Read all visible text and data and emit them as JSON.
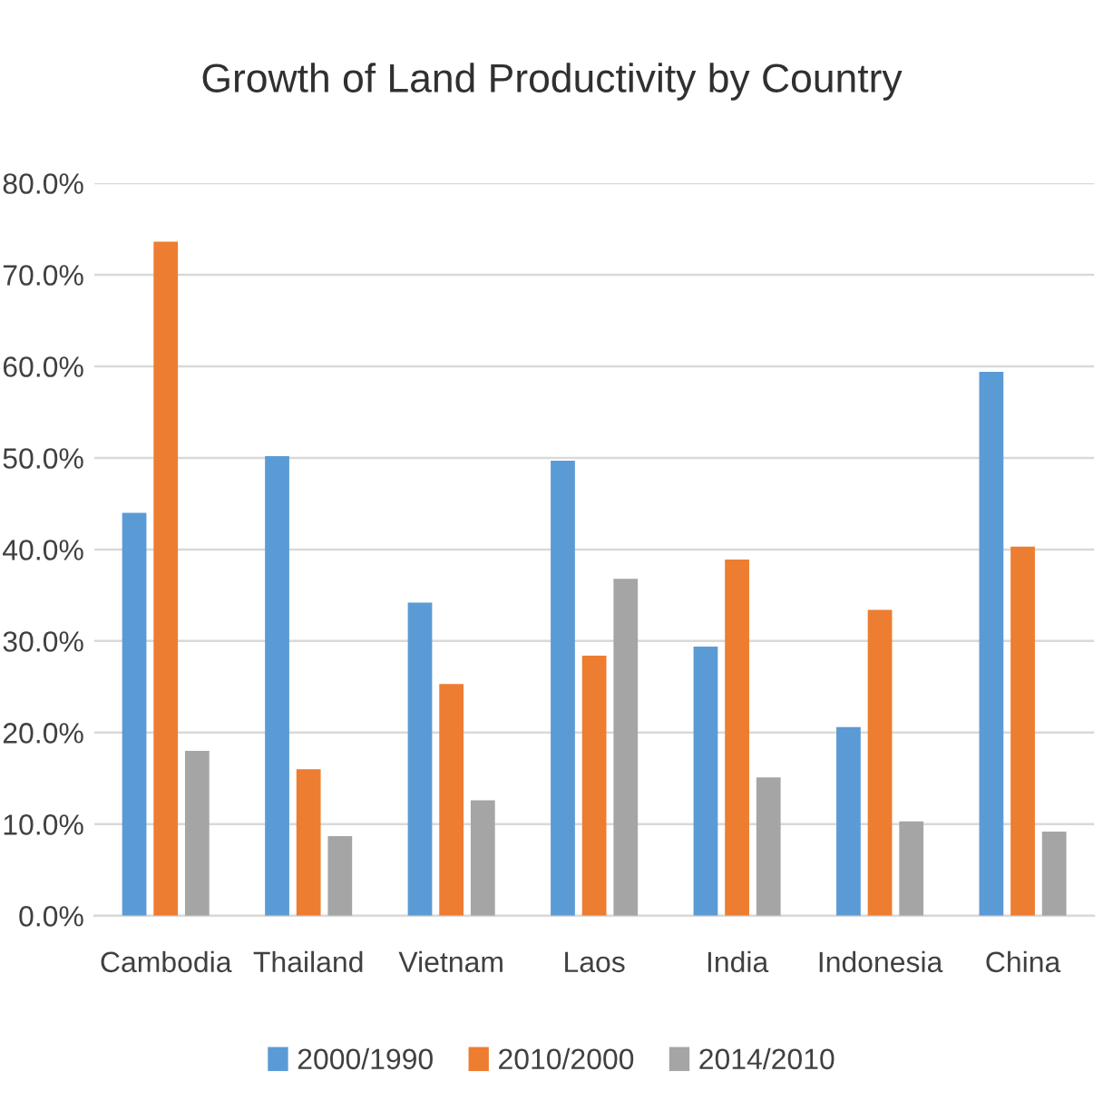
{
  "chart_data": {
    "type": "bar",
    "title": "Growth of Land Productivity by Country",
    "categories": [
      "Cambodia",
      "Thailand",
      "Vietnam",
      "Laos",
      "India",
      "Indonesia",
      "China"
    ],
    "series": [
      {
        "name": "2000/1990",
        "color": "#5b9bd5",
        "values": [
          44.0,
          50.2,
          34.2,
          49.7,
          29.4,
          20.6,
          59.4
        ]
      },
      {
        "name": "2010/2000",
        "color": "#ed7d31",
        "values": [
          73.6,
          16.0,
          25.3,
          28.4,
          38.9,
          33.4,
          40.3
        ]
      },
      {
        "name": "2014/2010",
        "color": "#a5a5a5",
        "values": [
          18.0,
          8.7,
          12.6,
          36.8,
          15.1,
          10.3,
          9.2
        ]
      }
    ],
    "ylim": [
      0,
      80
    ],
    "yticks": [
      {
        "value": 0,
        "label": "0.0%"
      },
      {
        "value": 10,
        "label": "10.0%"
      },
      {
        "value": 20,
        "label": "20.0%"
      },
      {
        "value": 30,
        "label": "30.0%"
      },
      {
        "value": 40,
        "label": "40.0%"
      },
      {
        "value": 50,
        "label": "50.0%"
      },
      {
        "value": 60,
        "label": "60.0%"
      },
      {
        "value": 70,
        "label": "70.0%"
      },
      {
        "value": 80,
        "label": "80.0%"
      }
    ],
    "grid": "y",
    "legend": "bottom"
  }
}
